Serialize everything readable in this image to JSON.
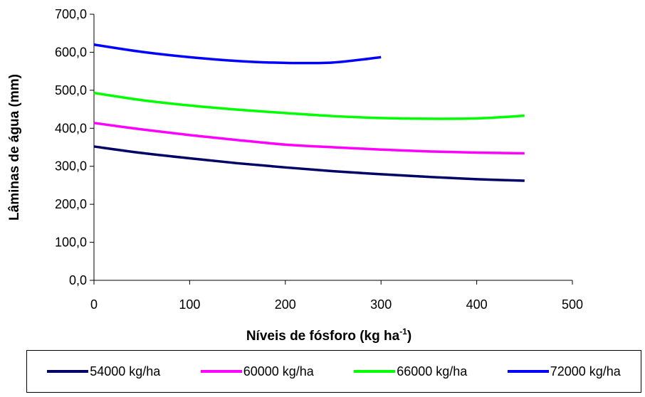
{
  "chart_data": {
    "type": "line",
    "title": "",
    "xlabel": "Níveis de fósforo (kg ha",
    "xlabel_sup": "-1",
    "xlabel_suffix": ")",
    "ylabel": "Lâminas de água (mm)",
    "xlim": [
      0,
      500
    ],
    "ylim": [
      0,
      700
    ],
    "x_ticks": [
      "0",
      "100",
      "200",
      "300",
      "400",
      "500"
    ],
    "y_ticks": [
      "0,0",
      "100,0",
      "200,0",
      "300,0",
      "400,0",
      "500,0",
      "600,0",
      "700,0"
    ],
    "grid": false,
    "legend_position": "bottom",
    "series": [
      {
        "name": "54000 kg/ha",
        "color": "#000066",
        "x": [
          0,
          50,
          100,
          150,
          200,
          250,
          300,
          350,
          400,
          450
        ],
        "y": [
          352,
          335,
          321,
          308,
          297,
          287,
          279,
          272,
          266,
          262
        ]
      },
      {
        "name": "60000 kg/ha",
        "color": "#FF00FF",
        "x": [
          0,
          50,
          100,
          150,
          200,
          250,
          300,
          350,
          400,
          450
        ],
        "y": [
          414,
          397,
          382,
          369,
          357,
          350,
          344,
          339,
          336,
          334
        ]
      },
      {
        "name": "66000 kg/ha",
        "color": "#00FF00",
        "x": [
          0,
          50,
          100,
          150,
          200,
          250,
          300,
          350,
          400,
          450
        ],
        "y": [
          493,
          474,
          460,
          449,
          440,
          432,
          427,
          425,
          426,
          433
        ]
      },
      {
        "name": "72000 kg/ha",
        "color": "#0000FF",
        "x": [
          0,
          50,
          100,
          150,
          200,
          250,
          300
        ],
        "y": [
          620,
          601,
          587,
          577,
          572,
          573,
          587
        ]
      }
    ]
  }
}
